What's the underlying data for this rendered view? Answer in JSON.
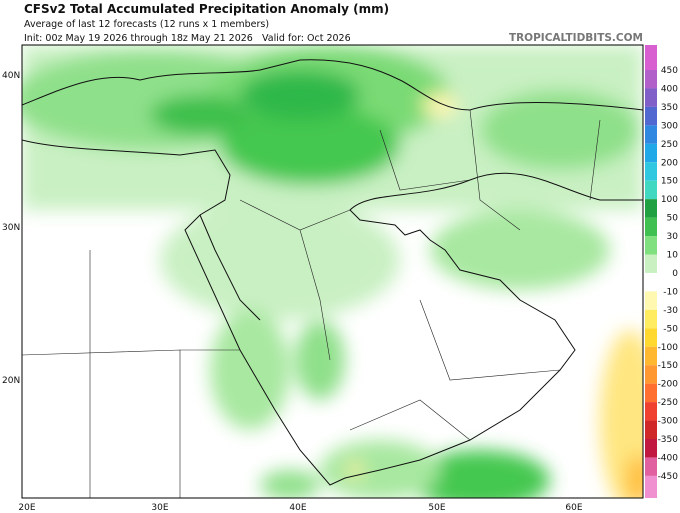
{
  "header": {
    "title": "CFSv2 Total Accumulated Precipitation Anomaly (mm)",
    "subtitle": "Average of last 12 forecasts (12 runs x 1 members)",
    "init": "Init: 00z May 19 2026 through 18z May 21 2026",
    "valid": "Valid for: Oct 2026",
    "site": "TROPICALTIDBITS.COM"
  },
  "map": {
    "lat_labels": [
      "40N",
      "30N",
      "20N"
    ],
    "lon_labels": [
      "20E",
      "30E",
      "40E",
      "50E",
      "60E"
    ]
  },
  "colorbar": {
    "labels": [
      450,
      400,
      350,
      300,
      250,
      200,
      150,
      100,
      50,
      30,
      10,
      0,
      -10,
      -30,
      -50,
      -100,
      -150,
      -200,
      -250,
      -300,
      -350,
      -400,
      -450
    ]
  }
}
